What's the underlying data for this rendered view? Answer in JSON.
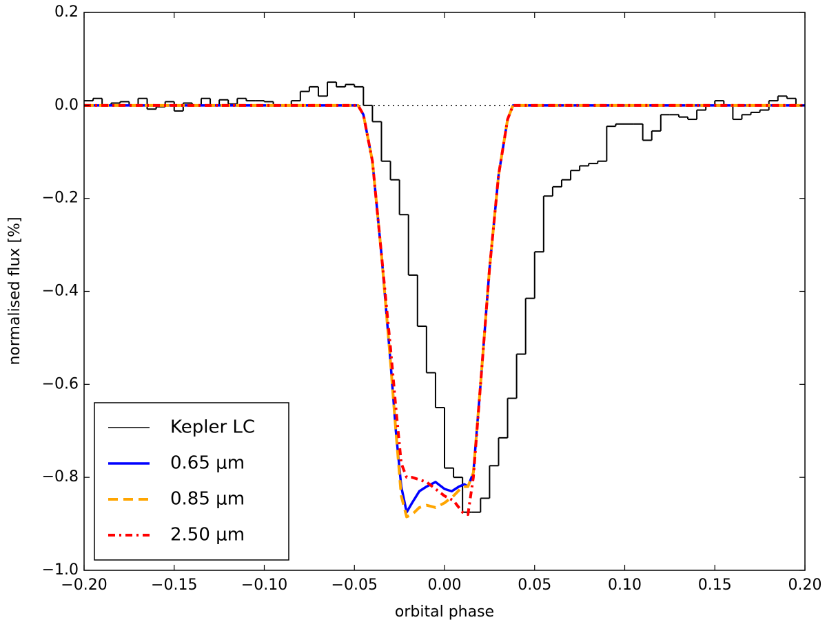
{
  "chart_data": {
    "type": "line",
    "x_label": "orbital phase",
    "y_label": "normalised flux [%]",
    "xlim": [
      -0.2,
      0.2
    ],
    "ylim": [
      -1.0,
      0.2
    ],
    "xticks": [
      {
        "value": -0.2,
        "label": "−0.20"
      },
      {
        "value": -0.15,
        "label": "−0.15"
      },
      {
        "value": -0.1,
        "label": "−0.10"
      },
      {
        "value": -0.05,
        "label": "−0.05"
      },
      {
        "value": 0,
        "label": "0.00"
      },
      {
        "value": 0.05,
        "label": "0.05"
      },
      {
        "value": 0.1,
        "label": "0.10"
      },
      {
        "value": 0.15,
        "label": "0.15"
      },
      {
        "value": 0.2,
        "label": "0.20"
      }
    ],
    "yticks": [
      0.2,
      {
        "value": 0,
        "label": "0.0"
      },
      {
        "value": -0.2,
        "label": "−0.2"
      },
      {
        "value": -0.4,
        "label": "−0.4"
      },
      {
        "value": -0.6,
        "label": "−0.6"
      },
      {
        "value": -0.8,
        "label": "−0.8"
      },
      {
        "value": -1.0,
        "label": "−1.0"
      }
    ],
    "hline": 0,
    "legend": "lower left",
    "series": [
      {
        "name": "Kepler LC",
        "color": "#000000",
        "style": "steps",
        "x": [
          -0.1975,
          -0.1925,
          -0.1875,
          -0.1825,
          -0.1775,
          -0.1725,
          -0.1675,
          -0.1625,
          -0.1575,
          -0.1525,
          -0.1475,
          -0.1425,
          -0.1375,
          -0.1325,
          -0.1275,
          -0.1225,
          -0.1175,
          -0.1125,
          -0.1075,
          -0.1025,
          -0.0975,
          -0.0925,
          -0.0875,
          -0.0825,
          -0.0775,
          -0.0725,
          -0.0675,
          -0.0625,
          -0.0575,
          -0.0525,
          -0.0475,
          -0.0425,
          -0.0375,
          -0.0325,
          -0.0275,
          -0.0225,
          -0.0175,
          -0.0125,
          -0.0075,
          -0.0025,
          0.0025,
          0.0075,
          0.0125,
          0.0175,
          0.0225,
          0.0275,
          0.0325,
          0.0375,
          0.0425,
          0.0475,
          0.0525,
          0.0575,
          0.0625,
          0.0675,
          0.0725,
          0.0775,
          0.0825,
          0.0875,
          0.0925,
          0.0975,
          0.1025,
          0.1075,
          0.1125,
          0.1175,
          0.1225,
          0.1275,
          0.1325,
          0.1375,
          0.1425,
          0.1475,
          0.1525,
          0.1575,
          0.1625,
          0.1675,
          0.1725,
          0.1775,
          0.1825,
          0.1875,
          0.1925,
          0.1975
        ],
        "values": [
          0.01,
          0.015,
          0.0,
          0.005,
          0.008,
          0.0,
          0.015,
          -0.008,
          -0.003,
          0.008,
          -0.012,
          0.005,
          0.0,
          0.015,
          0.0,
          0.012,
          0.003,
          0.015,
          0.01,
          0.01,
          0.008,
          0.0,
          0.0,
          0.01,
          0.03,
          0.04,
          0.02,
          0.05,
          0.04,
          0.045,
          0.04,
          0.0,
          -0.035,
          -0.12,
          -0.16,
          -0.235,
          -0.365,
          -0.475,
          -0.575,
          -0.65,
          -0.78,
          -0.8,
          -0.875,
          -0.875,
          -0.845,
          -0.775,
          -0.715,
          -0.63,
          -0.535,
          -0.415,
          -0.315,
          -0.195,
          -0.175,
          -0.16,
          -0.14,
          -0.13,
          -0.125,
          -0.12,
          -0.045,
          -0.04,
          -0.04,
          -0.04,
          -0.075,
          -0.055,
          -0.02,
          -0.02,
          -0.025,
          -0.03,
          -0.01,
          0.0,
          0.01,
          0.0,
          -0.03,
          -0.02,
          -0.015,
          -0.01,
          0.01,
          0.02,
          0.015,
          0.0
        ]
      },
      {
        "name": "0.65 μm",
        "color": "#0000ff",
        "style": "solid",
        "x": [
          -0.2,
          -0.048,
          -0.045,
          -0.04,
          -0.035,
          -0.03,
          -0.027,
          -0.024,
          -0.021,
          -0.018,
          -0.014,
          -0.01,
          -0.005,
          0.0,
          0.004,
          0.008,
          0.011,
          0.013,
          0.016,
          0.02,
          0.025,
          0.03,
          0.035,
          0.038,
          0.2
        ],
        "values": [
          0,
          0,
          -0.02,
          -0.12,
          -0.32,
          -0.55,
          -0.7,
          -0.82,
          -0.875,
          -0.855,
          -0.83,
          -0.82,
          -0.81,
          -0.825,
          -0.83,
          -0.82,
          -0.815,
          -0.82,
          -0.79,
          -0.6,
          -0.35,
          -0.15,
          -0.03,
          0,
          0
        ]
      },
      {
        "name": "0.85 μm",
        "color": "#ffa500",
        "style": "dashed",
        "x": [
          -0.2,
          -0.048,
          -0.045,
          -0.04,
          -0.035,
          -0.03,
          -0.027,
          -0.024,
          -0.021,
          -0.018,
          -0.014,
          -0.01,
          -0.005,
          0.0,
          0.005,
          0.01,
          0.013,
          0.016,
          0.02,
          0.025,
          0.03,
          0.035,
          0.038,
          0.2
        ],
        "values": [
          0,
          0,
          -0.02,
          -0.12,
          -0.32,
          -0.55,
          -0.7,
          -0.84,
          -0.885,
          -0.88,
          -0.865,
          -0.86,
          -0.865,
          -0.855,
          -0.84,
          -0.82,
          -0.82,
          -0.79,
          -0.6,
          -0.35,
          -0.15,
          -0.03,
          0,
          0
        ]
      },
      {
        "name": "2.50 μm",
        "color": "#ff0000",
        "style": "dashdot",
        "x": [
          -0.2,
          -0.048,
          -0.045,
          -0.04,
          -0.035,
          -0.03,
          -0.027,
          -0.024,
          -0.021,
          -0.018,
          -0.01,
          -0.005,
          0.0,
          0.005,
          0.01,
          0.013,
          0.016,
          0.02,
          0.025,
          0.03,
          0.035,
          0.038,
          0.2
        ],
        "values": [
          0,
          0,
          -0.02,
          -0.12,
          -0.32,
          -0.52,
          -0.65,
          -0.77,
          -0.8,
          -0.8,
          -0.81,
          -0.825,
          -0.84,
          -0.85,
          -0.875,
          -0.88,
          -0.8,
          -0.6,
          -0.35,
          -0.15,
          -0.03,
          0,
          0
        ]
      }
    ]
  }
}
